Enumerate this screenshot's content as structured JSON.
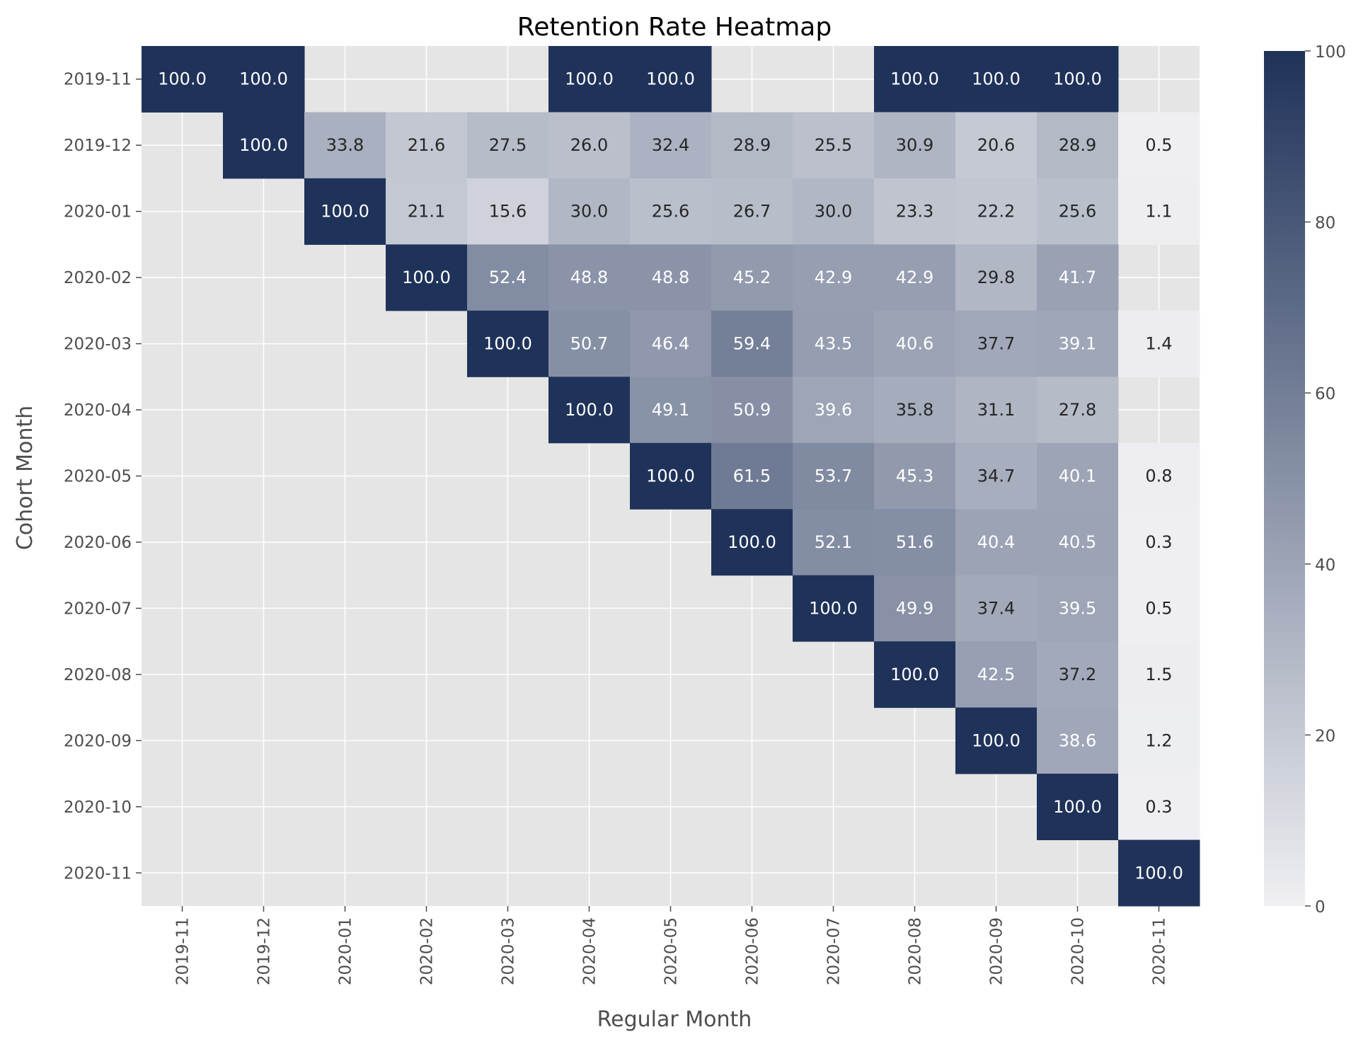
{
  "chart_data": {
    "type": "heatmap",
    "title": "Retention Rate Heatmap",
    "xlabel": "Regular Month",
    "ylabel": "Cohort Month",
    "x_categories": [
      "2019-11",
      "2019-12",
      "2020-01",
      "2020-02",
      "2020-03",
      "2020-04",
      "2020-05",
      "2020-06",
      "2020-07",
      "2020-08",
      "2020-09",
      "2020-10",
      "2020-11"
    ],
    "y_categories": [
      "2019-11",
      "2019-12",
      "2020-01",
      "2020-02",
      "2020-03",
      "2020-04",
      "2020-05",
      "2020-06",
      "2020-07",
      "2020-08",
      "2020-09",
      "2020-10",
      "2020-11"
    ],
    "values": [
      [
        100.0,
        100.0,
        null,
        null,
        null,
        100.0,
        100.0,
        null,
        null,
        100.0,
        100.0,
        100.0,
        null
      ],
      [
        null,
        100.0,
        33.8,
        21.6,
        27.5,
        26.0,
        32.4,
        28.9,
        25.5,
        30.9,
        20.6,
        28.9,
        0.5
      ],
      [
        null,
        null,
        100.0,
        21.1,
        15.6,
        30.0,
        25.6,
        26.7,
        30.0,
        23.3,
        22.2,
        25.6,
        1.1
      ],
      [
        null,
        null,
        null,
        100.0,
        52.4,
        48.8,
        48.8,
        45.2,
        42.9,
        42.9,
        29.8,
        41.7,
        null
      ],
      [
        null,
        null,
        null,
        null,
        100.0,
        50.7,
        46.4,
        59.4,
        43.5,
        40.6,
        37.7,
        39.1,
        1.4
      ],
      [
        null,
        null,
        null,
        null,
        null,
        100.0,
        49.1,
        50.9,
        39.6,
        35.8,
        31.1,
        27.8,
        null
      ],
      [
        null,
        null,
        null,
        null,
        null,
        null,
        100.0,
        61.5,
        53.7,
        45.3,
        34.7,
        40.1,
        0.8
      ],
      [
        null,
        null,
        null,
        null,
        null,
        null,
        null,
        100.0,
        52.1,
        51.6,
        40.4,
        40.5,
        0.3
      ],
      [
        null,
        null,
        null,
        null,
        null,
        null,
        null,
        null,
        100.0,
        49.9,
        37.4,
        39.5,
        0.5
      ],
      [
        null,
        null,
        null,
        null,
        null,
        null,
        null,
        null,
        null,
        100.0,
        42.5,
        37.2,
        1.5
      ],
      [
        null,
        null,
        null,
        null,
        null,
        null,
        null,
        null,
        null,
        null,
        100.0,
        38.6,
        1.2
      ],
      [
        null,
        null,
        null,
        null,
        null,
        null,
        null,
        null,
        null,
        null,
        null,
        100.0,
        0.3
      ],
      [
        null,
        null,
        null,
        null,
        null,
        null,
        null,
        null,
        null,
        null,
        null,
        null,
        100.0
      ]
    ],
    "colorbar": {
      "range": [
        0,
        100
      ],
      "ticks": [
        "0",
        "20",
        "40",
        "60",
        "80",
        "100"
      ],
      "low_color": "#f0f0f3",
      "high_color": "#1f3259"
    },
    "background_color": "#e5e5e5",
    "grid": true
  }
}
